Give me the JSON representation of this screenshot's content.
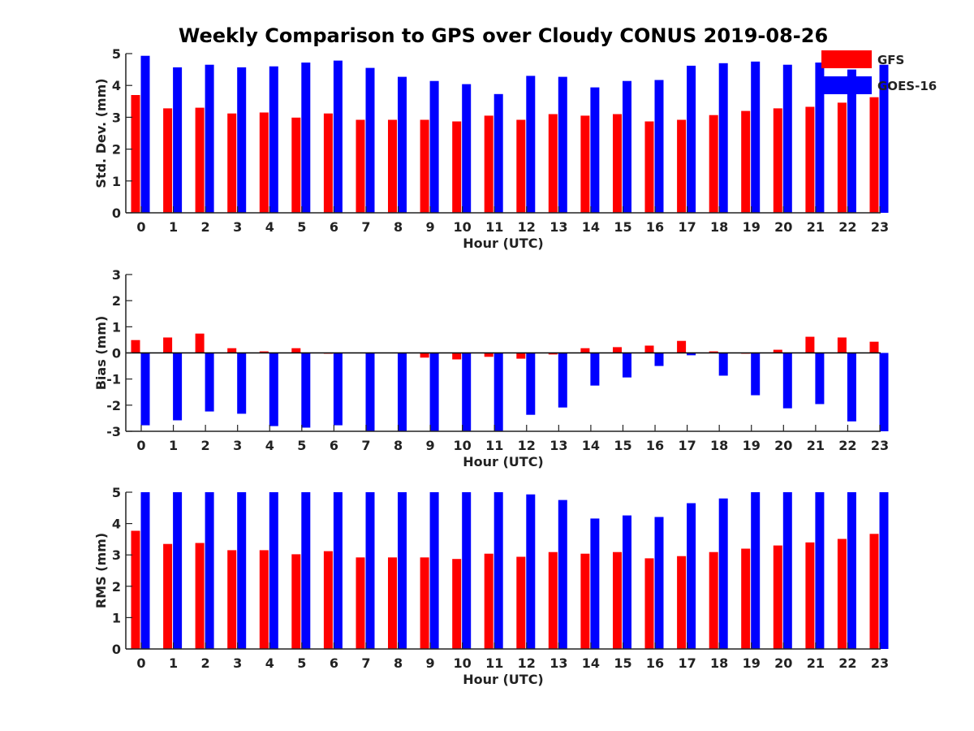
{
  "title": "Weekly Comparison to GPS over Cloudy CONUS 2019-08-26",
  "colors": {
    "GFS": "#ff0000",
    "GOES-16": "#0000ff"
  },
  "legend": {
    "position": "top-right",
    "items": [
      "GFS",
      "GOES-16"
    ]
  },
  "chart_data": [
    {
      "type": "bar",
      "title": "",
      "xlabel": "Hour (UTC)",
      "ylabel": "Std. Dev. (mm)",
      "ylim": [
        0,
        5
      ],
      "yticks": [
        0,
        1,
        2,
        3,
        4,
        5
      ],
      "categories": [
        "0",
        "1",
        "2",
        "3",
        "4",
        "5",
        "6",
        "7",
        "8",
        "9",
        "10",
        "11",
        "12",
        "13",
        "14",
        "15",
        "16",
        "17",
        "18",
        "19",
        "20",
        "21",
        "22",
        "23"
      ],
      "series": [
        {
          "name": "GFS",
          "color": "#ff0000",
          "values": [
            3.7,
            3.28,
            3.3,
            3.12,
            3.15,
            2.99,
            3.12,
            2.92,
            2.92,
            2.92,
            2.87,
            3.05,
            2.92,
            3.1,
            3.05,
            3.1,
            2.87,
            2.92,
            3.07,
            3.2,
            3.28,
            3.33,
            3.46,
            3.63
          ]
        },
        {
          "name": "GOES-16",
          "color": "#0000ff",
          "values": [
            4.93,
            4.57,
            4.65,
            4.57,
            4.6,
            4.72,
            4.78,
            4.55,
            4.27,
            4.14,
            4.04,
            3.73,
            4.3,
            4.27,
            3.94,
            4.14,
            4.17,
            4.62,
            4.7,
            4.75,
            4.65,
            4.72,
            4.5,
            4.65
          ]
        }
      ]
    },
    {
      "type": "bar",
      "title": "",
      "xlabel": "Hour (UTC)",
      "ylabel": "Bias (mm)",
      "ylim": [
        -3,
        3
      ],
      "yticks": [
        -3,
        -2,
        -1,
        0,
        1,
        2,
        3
      ],
      "categories": [
        "0",
        "1",
        "2",
        "3",
        "4",
        "5",
        "6",
        "7",
        "8",
        "9",
        "10",
        "11",
        "12",
        "13",
        "14",
        "15",
        "16",
        "17",
        "18",
        "19",
        "20",
        "21",
        "22",
        "23"
      ],
      "series": [
        {
          "name": "GFS",
          "color": "#ff0000",
          "values": [
            0.49,
            0.59,
            0.74,
            0.18,
            0.06,
            0.18,
            -0.03,
            0.0,
            0.0,
            -0.18,
            -0.25,
            -0.15,
            -0.22,
            -0.06,
            0.18,
            0.22,
            0.28,
            0.46,
            0.06,
            -0.03,
            0.12,
            0.62,
            0.59,
            0.43
          ]
        },
        {
          "name": "GOES-16",
          "color": "#0000ff",
          "values": [
            -2.77,
            -2.58,
            -2.24,
            -2.33,
            -2.8,
            -2.86,
            -2.77,
            -3.0,
            -3.0,
            -3.0,
            -3.0,
            -3.0,
            -2.37,
            -2.09,
            -1.25,
            -0.94,
            -0.5,
            -0.09,
            -0.87,
            -1.62,
            -2.12,
            -1.96,
            -2.62,
            -3.0
          ]
        }
      ]
    },
    {
      "type": "bar",
      "title": "",
      "xlabel": "Hour (UTC)",
      "ylabel": "RMS (mm)",
      "ylim": [
        0,
        5
      ],
      "yticks": [
        0,
        1,
        2,
        3,
        4,
        5
      ],
      "categories": [
        "0",
        "1",
        "2",
        "3",
        "4",
        "5",
        "6",
        "7",
        "8",
        "9",
        "10",
        "11",
        "12",
        "13",
        "14",
        "15",
        "16",
        "17",
        "18",
        "19",
        "20",
        "21",
        "22",
        "23"
      ],
      "series": [
        {
          "name": "GFS",
          "color": "#ff0000",
          "values": [
            3.77,
            3.35,
            3.38,
            3.15,
            3.15,
            3.02,
            3.12,
            2.92,
            2.92,
            2.92,
            2.87,
            3.04,
            2.94,
            3.09,
            3.04,
            3.09,
            2.89,
            2.96,
            3.09,
            3.2,
            3.3,
            3.4,
            3.51,
            3.67
          ]
        },
        {
          "name": "GOES-16",
          "color": "#0000ff",
          "values": [
            5.0,
            5.0,
            5.0,
            5.0,
            5.0,
            5.0,
            5.0,
            5.0,
            5.0,
            5.0,
            5.0,
            5.0,
            4.93,
            4.75,
            4.16,
            4.26,
            4.21,
            4.65,
            4.8,
            5.0,
            5.0,
            5.0,
            5.0,
            5.0
          ]
        }
      ]
    }
  ]
}
